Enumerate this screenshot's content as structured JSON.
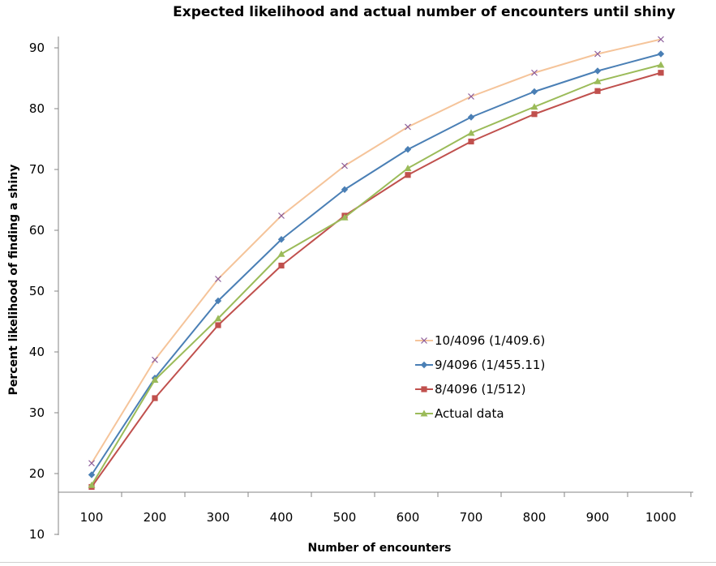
{
  "chart_data": {
    "type": "line",
    "title": "Expected likelihood and actual number of encounters until shiny",
    "xlabel": "Number of encounters",
    "ylabel": "Percent likelihood of finding a shiny",
    "categories": [
      "100",
      "200",
      "300",
      "400",
      "500",
      "600",
      "700",
      "800",
      "900",
      "1000"
    ],
    "ylim": [
      10,
      92
    ],
    "yticks": [
      "10",
      "20",
      "30",
      "40",
      "50",
      "60",
      "70",
      "80",
      "90"
    ],
    "grid": false,
    "legend_position": "right",
    "series": [
      {
        "name": "10/4096 (1/409.6)",
        "color": "#f5c49a",
        "marker": "x",
        "marker_color": "#8a5a9a",
        "values": [
          21.7,
          38.7,
          52.0,
          62.4,
          70.6,
          77.0,
          82.0,
          85.9,
          89.0,
          91.4
        ]
      },
      {
        "name": "9/4096 (1/455.11)",
        "color": "#4a7fb5",
        "marker": "diamond",
        "marker_color": "#4a7fb5",
        "values": [
          19.8,
          35.7,
          48.4,
          58.5,
          66.7,
          73.3,
          78.6,
          82.8,
          86.2,
          89.0
        ]
      },
      {
        "name": "8/4096 (1/512)",
        "color": "#c0504d",
        "marker": "square",
        "marker_color": "#c0504d",
        "values": [
          17.8,
          32.4,
          44.4,
          54.2,
          62.4,
          69.1,
          74.6,
          79.1,
          82.9,
          85.9
        ]
      },
      {
        "name": "Actual data",
        "color": "#9bbb59",
        "marker": "triangle",
        "marker_color": "#9bbb59",
        "values": [
          18.1,
          35.4,
          45.5,
          56.1,
          62.1,
          70.2,
          76.0,
          80.3,
          84.5,
          87.2
        ]
      }
    ]
  }
}
